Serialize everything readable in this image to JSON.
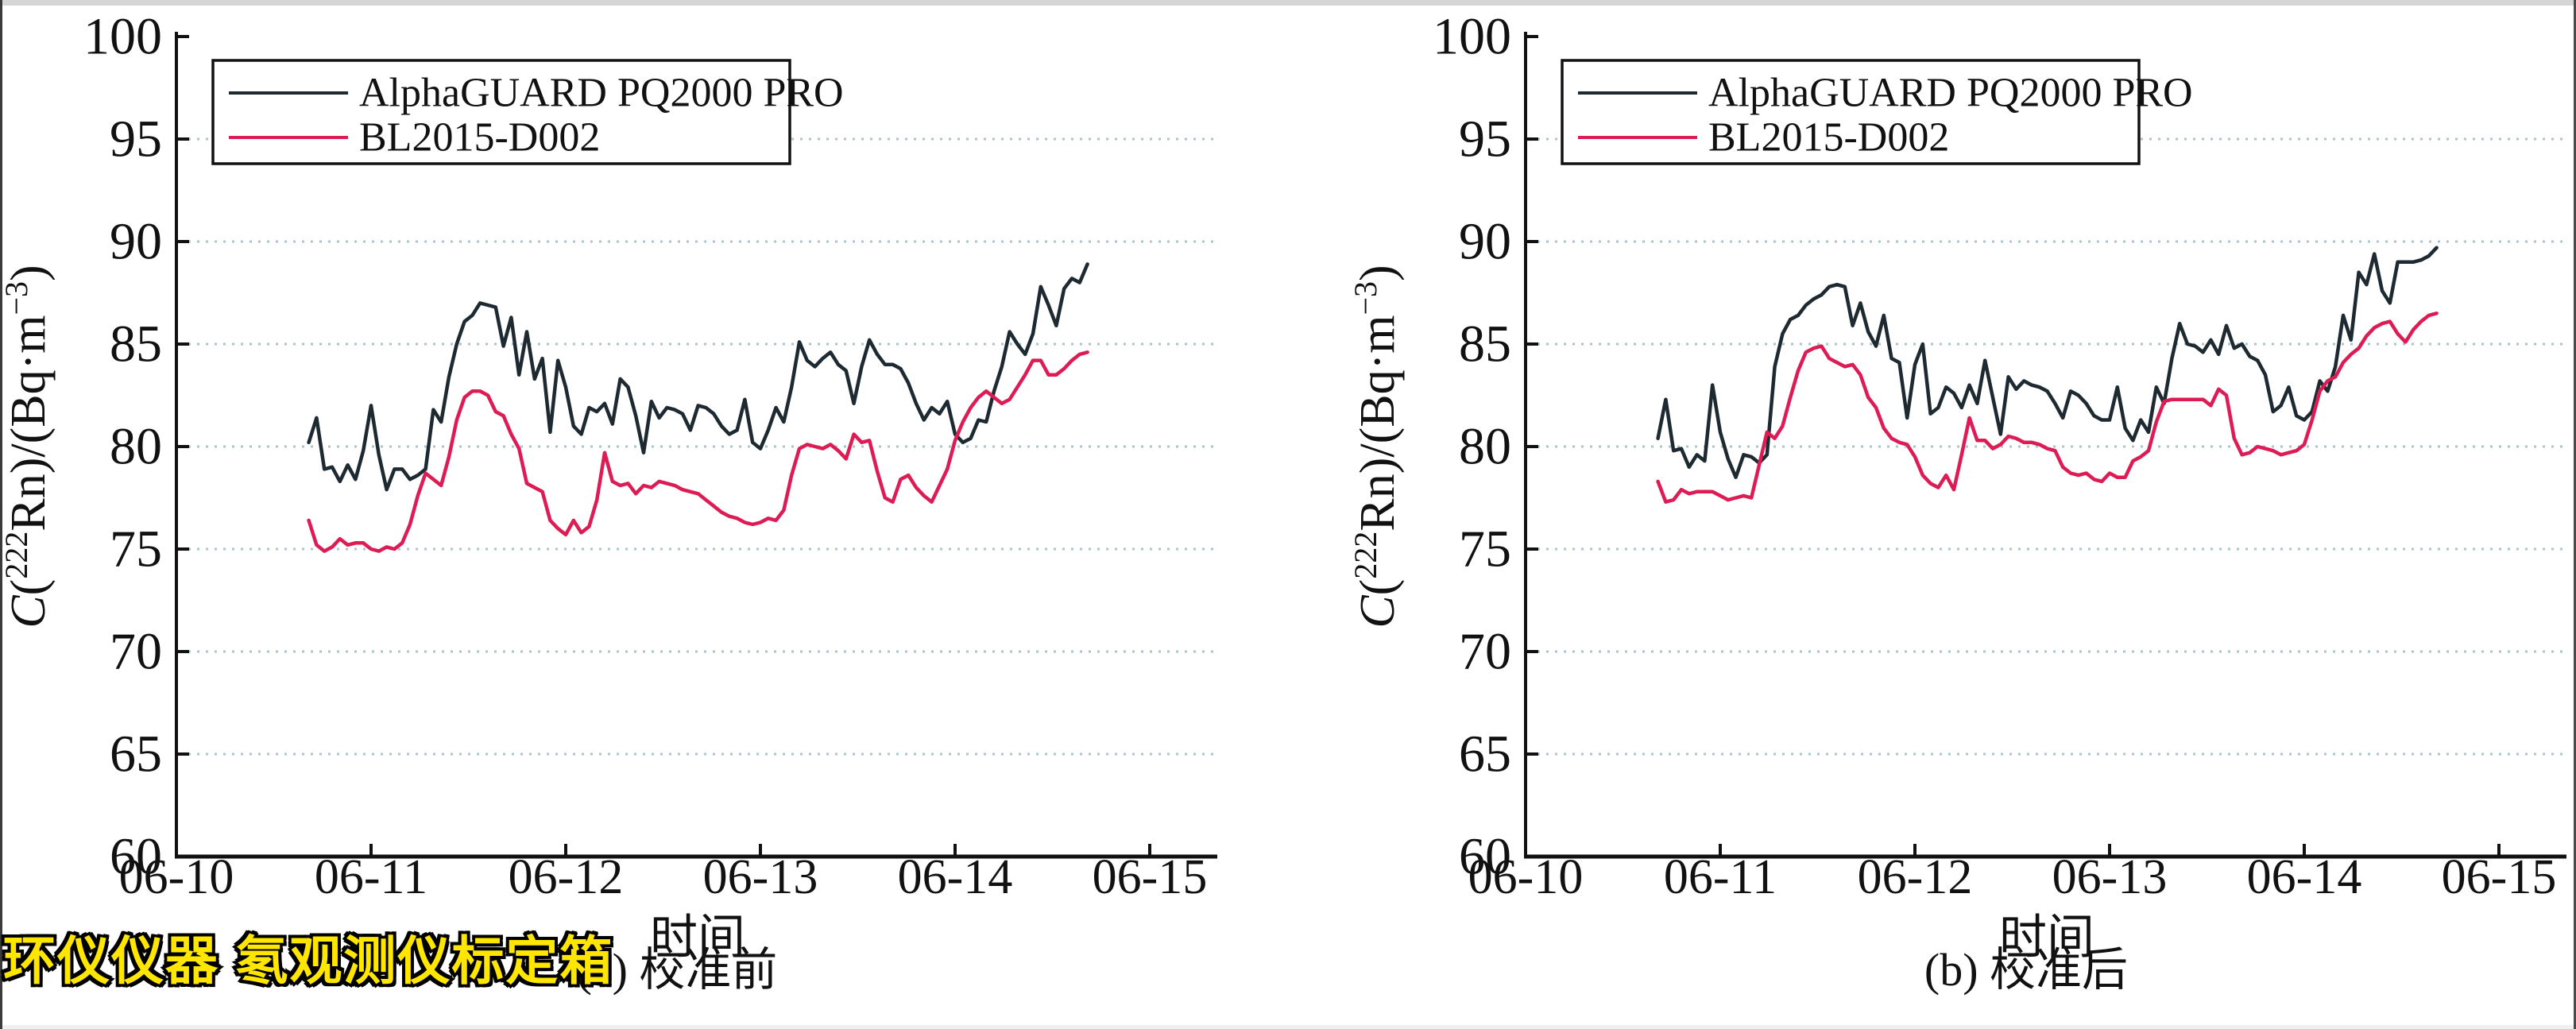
{
  "page": {
    "background": "#ffffff",
    "top_strip_color": "#d6d6d6",
    "bottom_strip_color": "#f0f0f0",
    "left_edge_color": "#3a3a3a",
    "right_edge_color": "#4a4a4a",
    "gridline_color": "#a9c6ce",
    "axis_color": "#111111"
  },
  "watermark": {
    "text": "环仪仪器 氡观测仪标定箱",
    "color": "#ffe600",
    "outline_color": "#000000"
  },
  "ylabel_parts": [
    {
      "t": "C",
      "italic": true
    },
    {
      "t": "("
    },
    {
      "t": "222",
      "sup": true
    },
    {
      "t": "Rn)/(Bq·m"
    },
    {
      "t": "−3",
      "sup": true
    },
    {
      "t": ")"
    }
  ],
  "chart_data": [
    {
      "type": "line",
      "title": "(a) 校准前",
      "xlabel": "时间",
      "ylabel": "C(222Rn)/(Bq·m−3)",
      "ylim": [
        60,
        100
      ],
      "y_ticks": [
        60,
        65,
        70,
        75,
        80,
        85,
        90,
        95,
        100
      ],
      "x_tick_labels": [
        "06-10",
        "06-11",
        "06-12",
        "06-13",
        "06-14",
        "06-15"
      ],
      "grid": "dotted horizontal lines at 65..95",
      "legend_position": "top-left",
      "x": {
        "start_day": 0.68,
        "step_day": 0.04,
        "unit": "days after 06-10"
      },
      "series": [
        {
          "name": "AlphaGUARD PQ2000 PRO",
          "color": "#1e2a31",
          "values": [
            80.2,
            81.4,
            78.9,
            79.0,
            78.3,
            79.1,
            78.4,
            79.8,
            82.0,
            79.6,
            77.9,
            78.9,
            78.9,
            78.4,
            78.6,
            78.9,
            81.8,
            81.2,
            83.4,
            85.0,
            86.1,
            86.4,
            87.0,
            86.9,
            86.8,
            84.9,
            86.3,
            83.5,
            85.6,
            83.3,
            84.3,
            80.7,
            84.2,
            82.9,
            81.0,
            80.6,
            81.9,
            81.7,
            82.1,
            81.1,
            83.3,
            82.9,
            81.5,
            79.7,
            82.2,
            81.4,
            81.9,
            81.8,
            81.6,
            80.8,
            82.0,
            81.9,
            81.6,
            81.0,
            80.6,
            80.8,
            82.3,
            80.2,
            79.9,
            80.8,
            81.9,
            81.2,
            82.9,
            85.1,
            84.2,
            83.9,
            84.3,
            84.6,
            84.0,
            83.7,
            82.1,
            83.9,
            85.2,
            84.5,
            84.0,
            84.0,
            83.8,
            83.1,
            82.1,
            81.3,
            81.9,
            81.6,
            82.2,
            80.6,
            80.2,
            80.4,
            81.3,
            81.2,
            82.7,
            83.9,
            85.6,
            85.0,
            84.5,
            85.5,
            87.8,
            86.9,
            85.9,
            87.7,
            88.2,
            88.0,
            88.9
          ]
        },
        {
          "name": "BL2015-D002",
          "color": "#dd1c55",
          "values": [
            76.4,
            75.2,
            74.9,
            75.1,
            75.5,
            75.2,
            75.3,
            75.3,
            75.0,
            74.9,
            75.1,
            75.0,
            75.3,
            76.2,
            77.6,
            78.7,
            78.4,
            78.1,
            79.5,
            81.3,
            82.4,
            82.7,
            82.7,
            82.5,
            81.7,
            81.5,
            80.6,
            79.9,
            78.2,
            78.0,
            77.8,
            76.4,
            76.0,
            75.7,
            76.4,
            75.8,
            76.1,
            77.4,
            79.7,
            78.3,
            78.1,
            78.2,
            77.7,
            78.1,
            78.0,
            78.3,
            78.2,
            78.1,
            77.9,
            77.8,
            77.7,
            77.4,
            77.1,
            76.8,
            76.6,
            76.5,
            76.3,
            76.2,
            76.3,
            76.5,
            76.4,
            76.9,
            78.6,
            79.9,
            80.1,
            80.0,
            79.9,
            80.1,
            79.8,
            79.4,
            80.6,
            80.2,
            80.3,
            78.8,
            77.5,
            77.3,
            78.4,
            78.6,
            78.0,
            77.6,
            77.3,
            78.1,
            78.9,
            80.3,
            81.2,
            81.9,
            82.4,
            82.7,
            82.4,
            82.1,
            82.3,
            82.9,
            83.5,
            84.2,
            84.2,
            83.5,
            83.5,
            83.8,
            84.2,
            84.5,
            84.6
          ]
        }
      ]
    },
    {
      "type": "line",
      "title": "(b) 校准后",
      "xlabel": "时间",
      "ylabel": "C(222Rn)/(Bq·m−3)",
      "ylim": [
        60,
        100
      ],
      "y_ticks": [
        60,
        65,
        70,
        75,
        80,
        85,
        90,
        95,
        100
      ],
      "x_tick_labels": [
        "06-10",
        "06-11",
        "06-12",
        "06-13",
        "06-14",
        "06-15"
      ],
      "grid": "dotted horizontal lines at 65..95",
      "legend_position": "top-left",
      "x": {
        "start_day": 0.68,
        "step_day": 0.04,
        "unit": "days after 06-10"
      },
      "series": [
        {
          "name": "AlphaGUARD PQ2000 PRO",
          "color": "#1e2a31",
          "values": [
            80.4,
            82.3,
            79.8,
            79.9,
            79.0,
            79.6,
            79.3,
            83.0,
            80.7,
            79.4,
            78.5,
            79.6,
            79.5,
            79.2,
            79.6,
            83.9,
            85.5,
            86.2,
            86.4,
            86.9,
            87.2,
            87.4,
            87.8,
            87.9,
            87.8,
            85.9,
            87.0,
            85.6,
            84.9,
            86.4,
            84.3,
            84.1,
            81.4,
            84.0,
            85.0,
            81.6,
            81.9,
            82.9,
            82.6,
            81.9,
            83.0,
            82.1,
            84.2,
            82.4,
            80.6,
            83.4,
            82.8,
            83.2,
            83.0,
            82.9,
            82.7,
            82.1,
            81.4,
            82.7,
            82.5,
            82.1,
            81.5,
            81.3,
            81.3,
            82.9,
            80.9,
            80.3,
            81.3,
            80.7,
            82.9,
            82.1,
            84.3,
            86.0,
            85.0,
            84.9,
            84.6,
            85.2,
            84.5,
            85.9,
            84.8,
            85.0,
            84.4,
            84.2,
            83.5,
            81.7,
            82.0,
            82.9,
            81.5,
            81.3,
            81.7,
            83.2,
            82.7,
            83.9,
            86.4,
            85.2,
            88.5,
            87.9,
            89.4,
            87.6,
            87.0,
            89.0,
            89.0,
            89.0,
            89.1,
            89.3,
            89.7
          ]
        },
        {
          "name": "BL2015-D002",
          "color": "#dd1c55",
          "values": [
            78.3,
            77.3,
            77.4,
            77.9,
            77.7,
            77.8,
            77.8,
            77.8,
            77.6,
            77.4,
            77.5,
            77.6,
            77.5,
            79.1,
            80.7,
            80.4,
            81.0,
            82.4,
            83.7,
            84.6,
            84.8,
            84.9,
            84.3,
            84.1,
            83.9,
            84.0,
            83.5,
            82.4,
            81.9,
            80.9,
            80.4,
            80.2,
            80.1,
            79.5,
            78.6,
            78.2,
            78.0,
            78.6,
            77.9,
            79.6,
            81.4,
            80.3,
            80.3,
            79.9,
            80.1,
            80.5,
            80.4,
            80.2,
            80.2,
            80.1,
            79.9,
            79.8,
            79.0,
            78.7,
            78.6,
            78.7,
            78.4,
            78.3,
            78.7,
            78.5,
            78.5,
            79.3,
            79.5,
            79.8,
            81.2,
            82.2,
            82.3,
            82.3,
            82.3,
            82.3,
            82.3,
            82.0,
            82.8,
            82.5,
            80.4,
            79.6,
            79.7,
            80.0,
            79.9,
            79.8,
            79.6,
            79.7,
            79.8,
            80.1,
            81.3,
            82.7,
            83.2,
            83.4,
            84.1,
            84.5,
            84.8,
            85.4,
            85.8,
            86.0,
            86.1,
            85.5,
            85.1,
            85.7,
            86.1,
            86.4,
            86.5
          ]
        }
      ]
    }
  ]
}
